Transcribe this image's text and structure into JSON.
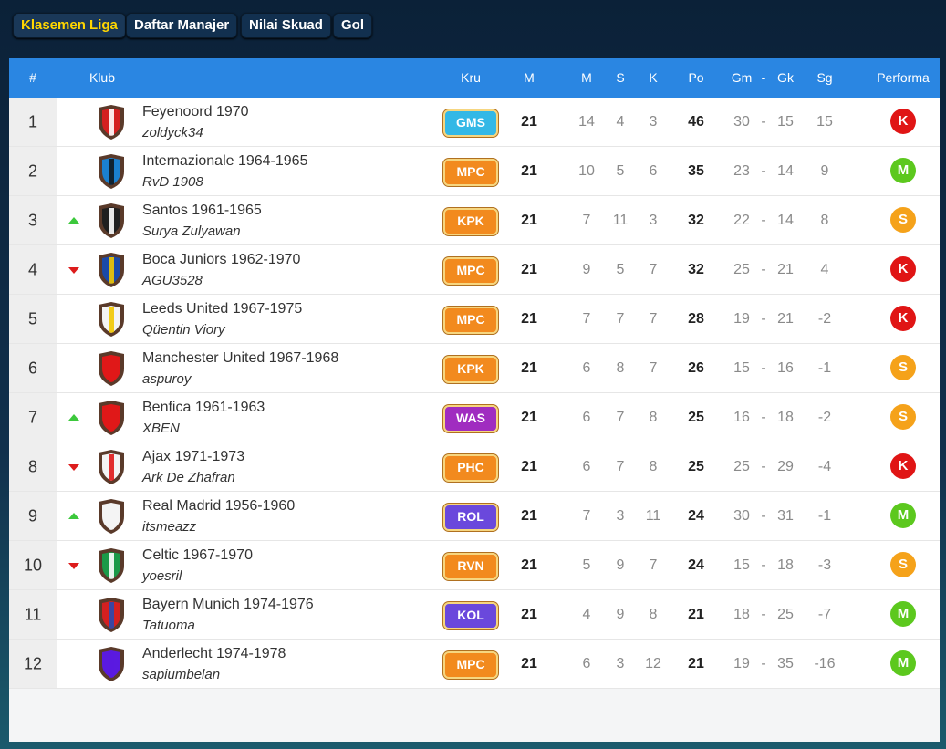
{
  "tabs": [
    "Klasemen Liga",
    "Daftar Manajer",
    "Nilai Skuad",
    "Gol"
  ],
  "active_tab": 0,
  "table": {
    "columns": [
      "#",
      "Klub",
      "Kru",
      "M",
      "M",
      "S",
      "K",
      "Po",
      "Gm",
      "-",
      "Gk",
      "Sg",
      "Performa"
    ],
    "rows": [
      {
        "rank": 1,
        "club": "Feyenoord 1970",
        "manager": "zoldyck34",
        "crest": [
          "#d42020",
          "#ffffff"
        ],
        "kru": {
          "label": "GMS",
          "color": "#33b8e6"
        },
        "stats": [
          21,
          14,
          4,
          3,
          46,
          30,
          15,
          15
        ],
        "performa": {
          "label": "K",
          "color": "#e01515"
        }
      },
      {
        "rank": 2,
        "club": "Internazionale 1964-1965",
        "manager": "RvD 1908",
        "crest": [
          "#1a80d0",
          "#101820"
        ],
        "kru": {
          "label": "MPC",
          "color": "#f28a1e"
        },
        "stats": [
          21,
          10,
          5,
          6,
          35,
          23,
          14,
          9
        ],
        "performa": {
          "label": "M",
          "color": "#5cc81e"
        }
      },
      {
        "rank": 3,
        "trend": "up",
        "club": "Santos 1961-1965",
        "manager": "Surya Zulyawan",
        "crest": [
          "#202020",
          "#ffffff"
        ],
        "kru": {
          "label": "KPK",
          "color": "#f28a1e"
        },
        "stats": [
          21,
          7,
          11,
          3,
          32,
          22,
          14,
          8
        ],
        "performa": {
          "label": "S",
          "color": "#f5a21a"
        }
      },
      {
        "rank": 4,
        "trend": "down",
        "club": "Boca Juniors 1962-1970",
        "manager": "AGU3528",
        "crest": [
          "#1a4aa8",
          "#f2c800"
        ],
        "kru": {
          "label": "MPC",
          "color": "#f28a1e"
        },
        "stats": [
          21,
          9,
          5,
          7,
          32,
          25,
          21,
          4
        ],
        "performa": {
          "label": "K",
          "color": "#e01515"
        }
      },
      {
        "rank": 5,
        "club": "Leeds United 1967-1975",
        "manager": "Qüentin Viory",
        "crest": [
          "#f4f4f4",
          "#f2c800"
        ],
        "kru": {
          "label": "MPC",
          "color": "#f28a1e"
        },
        "stats": [
          21,
          7,
          7,
          7,
          28,
          19,
          21,
          -2
        ],
        "performa": {
          "label": "K",
          "color": "#e01515"
        }
      },
      {
        "rank": 6,
        "club": "Manchester United 1967-1968",
        "manager": "aspuroy",
        "crest": [
          "#e01818",
          "#e01818"
        ],
        "kru": {
          "label": "KPK",
          "color": "#f28a1e"
        },
        "stats": [
          21,
          6,
          8,
          7,
          26,
          15,
          16,
          -1
        ],
        "performa": {
          "label": "S",
          "color": "#f5a21a"
        }
      },
      {
        "rank": 7,
        "trend": "up",
        "club": "Benfica 1961-1963",
        "manager": "XBEN",
        "crest": [
          "#e01818",
          "#e01818"
        ],
        "kru": {
          "label": "WAS",
          "color": "#a02cc0"
        },
        "stats": [
          21,
          6,
          7,
          8,
          25,
          16,
          18,
          -2
        ],
        "performa": {
          "label": "S",
          "color": "#f5a21a"
        }
      },
      {
        "rank": 8,
        "trend": "down",
        "club": "Ajax 1971-1973",
        "manager": "Ark De Zhafran",
        "crest": [
          "#f4f4f4",
          "#e01818"
        ],
        "kru": {
          "label": "PHC",
          "color": "#f28a1e"
        },
        "stats": [
          21,
          6,
          7,
          8,
          25,
          25,
          29,
          -4
        ],
        "performa": {
          "label": "K",
          "color": "#e01515"
        }
      },
      {
        "rank": 9,
        "trend": "up",
        "club": "Real Madrid 1956-1960",
        "manager": "itsmeazz",
        "crest": [
          "#f4f4f4",
          "#f4f4f4"
        ],
        "kru": {
          "label": "ROL",
          "color": "#6a48dc"
        },
        "stats": [
          21,
          7,
          3,
          11,
          24,
          30,
          31,
          -1
        ],
        "performa": {
          "label": "M",
          "color": "#5cc81e"
        }
      },
      {
        "rank": 10,
        "trend": "down",
        "club": "Celtic 1967-1970",
        "manager": "yoesril",
        "crest": [
          "#1a9a48",
          "#ffffff"
        ],
        "kru": {
          "label": "RVN",
          "color": "#f28a1e"
        },
        "stats": [
          21,
          5,
          9,
          7,
          24,
          15,
          18,
          -3
        ],
        "performa": {
          "label": "S",
          "color": "#f5a21a"
        }
      },
      {
        "rank": 11,
        "club": "Bayern Munich 1974-1976",
        "manager": "Tatuoma",
        "crest": [
          "#d42020",
          "#2a4ab0"
        ],
        "kru": {
          "label": "KOL",
          "color": "#6a48dc"
        },
        "stats": [
          21,
          4,
          9,
          8,
          21,
          18,
          25,
          -7
        ],
        "performa": {
          "label": "M",
          "color": "#5cc81e"
        }
      },
      {
        "rank": 12,
        "club": "Anderlecht 1974-1978",
        "manager": "sapiumbelan",
        "crest": [
          "#5a1ae0",
          "#5a1ae0"
        ],
        "kru": {
          "label": "MPC",
          "color": "#f28a1e"
        },
        "stats": [
          21,
          6,
          3,
          12,
          21,
          19,
          35,
          -16
        ],
        "performa": {
          "label": "M",
          "color": "#5cc81e"
        }
      }
    ]
  }
}
